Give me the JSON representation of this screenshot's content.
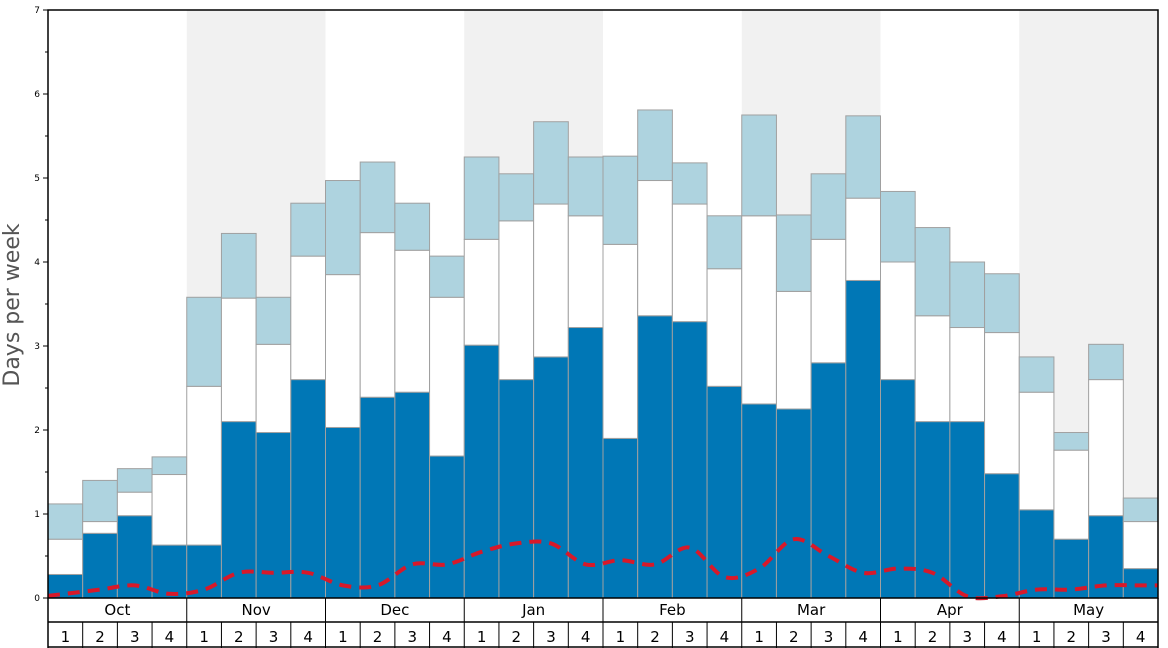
{
  "chart_data": {
    "type": "bar",
    "stacked": true,
    "ylabel": "Days per week",
    "ylim": [
      0,
      7
    ],
    "y_ticks": [
      "0",
      "1",
      "2",
      "3",
      "4",
      "5",
      "6",
      "7"
    ],
    "months": [
      "Oct",
      "Nov",
      "Dec",
      "Jan",
      "Feb",
      "Mar",
      "Apr",
      "May"
    ],
    "week_labels": [
      "1",
      "2",
      "3",
      "4"
    ],
    "colors": {
      "bottom": "#0077b6",
      "middle": "#ffffff",
      "top": "#aed3df",
      "line": "#d7192a",
      "band": "#f1f1f1",
      "bar_border": "#a0a0a0"
    },
    "series": [
      {
        "values": [
          0.28,
          0.77,
          0.98,
          0.63,
          0.63,
          2.1,
          1.97,
          2.6,
          2.03,
          2.39,
          2.45,
          1.69,
          3.01,
          2.6,
          2.87,
          3.22,
          1.9,
          3.36,
          3.29,
          2.52,
          2.31,
          2.25,
          2.8,
          3.78,
          2.6,
          2.1,
          2.1,
          1.48,
          1.05,
          0.7,
          0.98,
          0.35
        ]
      },
      {
        "values": [
          0.42,
          0.14,
          0.28,
          0.84,
          1.89,
          1.47,
          1.05,
          1.47,
          1.82,
          1.96,
          1.69,
          1.89,
          1.26,
          1.89,
          1.82,
          1.33,
          2.31,
          1.61,
          1.4,
          1.4,
          2.24,
          1.4,
          1.47,
          0.98,
          1.4,
          1.26,
          1.12,
          1.68,
          1.4,
          1.06,
          1.62,
          0.56
        ]
      },
      {
        "values": [
          0.42,
          0.49,
          0.28,
          0.21,
          1.06,
          0.77,
          0.56,
          0.63,
          1.12,
          0.84,
          0.56,
          0.49,
          0.98,
          0.56,
          0.98,
          0.7,
          1.05,
          0.84,
          0.49,
          0.63,
          1.2,
          0.91,
          0.78,
          0.98,
          0.84,
          1.05,
          0.78,
          0.7,
          0.42,
          0.21,
          0.42,
          0.28
        ]
      },
      {
        "type": "line",
        "values": [
          0.05,
          0.1,
          0.15,
          0.05,
          0.1,
          0.3,
          0.3,
          0.3,
          0.15,
          0.15,
          0.4,
          0.4,
          0.55,
          0.65,
          0.65,
          0.4,
          0.45,
          0.4,
          0.6,
          0.25,
          0.35,
          0.7,
          0.5,
          0.3,
          0.35,
          0.3,
          0.02,
          0.02,
          0.1,
          0.1,
          0.15,
          0.15
        ]
      }
    ]
  }
}
